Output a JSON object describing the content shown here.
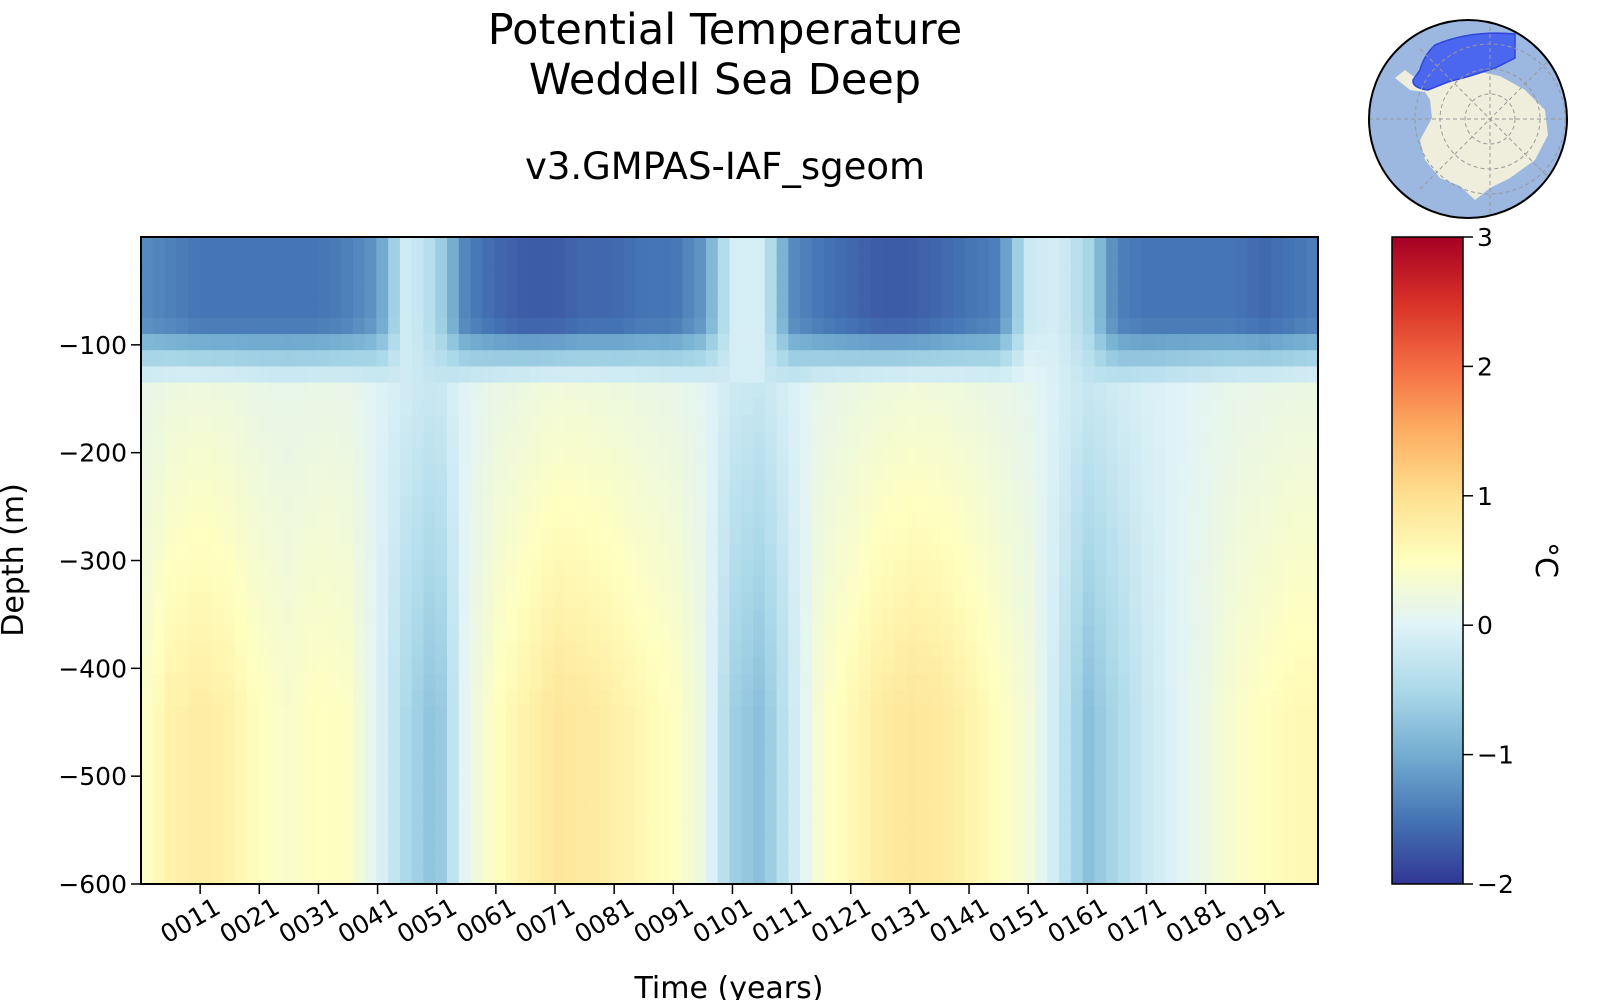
{
  "chart_data": {
    "type": "heatmap",
    "title": "Potential Temperature",
    "title_line2": "Weddell Sea Deep",
    "subtitle": "v3.GMPAS-IAF_sgeom",
    "xlabel": "Time (years)",
    "ylabel": "Depth (m)",
    "xlim": [
      1,
      200
    ],
    "ylim": [
      -600,
      0
    ],
    "x_ticks": [
      11,
      21,
      31,
      41,
      51,
      61,
      71,
      81,
      91,
      101,
      111,
      121,
      131,
      141,
      151,
      161,
      171,
      181,
      191
    ],
    "x_tick_labels": [
      "0011",
      "0021",
      "0031",
      "0041",
      "0051",
      "0061",
      "0071",
      "0081",
      "0091",
      "0101",
      "0111",
      "0121",
      "0131",
      "0141",
      "0151",
      "0161",
      "0171",
      "0181",
      "0191"
    ],
    "y_ticks": [
      -100,
      -200,
      -300,
      -400,
      -500,
      -600
    ],
    "y_tick_labels": [
      "−100",
      "−200",
      "−300",
      "−400",
      "−500",
      "−600"
    ],
    "colorbar": {
      "label": "°C",
      "range": [
        -2,
        3
      ],
      "ticks": [
        3,
        2,
        1,
        0,
        -1,
        -2
      ],
      "tick_labels": [
        "3",
        "2",
        "1",
        "0",
        "−1",
        "−2"
      ],
      "colormap": "RdYlBu_r"
    },
    "mean_deep_temperature_by_year": {
      "years": [
        1,
        6,
        11,
        16,
        21,
        26,
        31,
        36,
        41,
        46,
        51,
        56,
        61,
        66,
        71,
        76,
        81,
        86,
        91,
        96,
        101,
        106,
        111,
        116,
        121,
        126,
        131,
        136,
        141,
        146,
        151,
        156,
        161,
        166,
        171,
        176,
        181,
        186,
        191,
        196,
        200
      ],
      "values": [
        0.4,
        0.7,
        0.8,
        0.7,
        0.5,
        0.4,
        0.5,
        0.45,
        0.0,
        -0.5,
        -0.8,
        0.1,
        0.5,
        0.7,
        0.9,
        0.85,
        0.75,
        0.6,
        0.5,
        0.2,
        -0.6,
        -0.8,
        -0.2,
        0.4,
        0.6,
        0.8,
        0.9,
        0.85,
        0.7,
        0.5,
        0.3,
        -0.2,
        -0.8,
        -0.5,
        -0.2,
        0.0,
        0.2,
        0.4,
        0.5,
        0.6,
        0.6
      ]
    },
    "surface_temperature_by_year": {
      "years": [
        1,
        6,
        11,
        16,
        21,
        26,
        31,
        36,
        41,
        46,
        51,
        56,
        61,
        66,
        71,
        76,
        81,
        86,
        91,
        96,
        101,
        106,
        111,
        116,
        121,
        126,
        131,
        136,
        141,
        146,
        151,
        156,
        161,
        166,
        171,
        176,
        181,
        186,
        191,
        196,
        200
      ],
      "values": [
        -1.3,
        -1.4,
        -1.5,
        -1.5,
        -1.5,
        -1.5,
        -1.5,
        -1.4,
        -1.2,
        -0.1,
        -0.5,
        -1.4,
        -1.6,
        -1.7,
        -1.7,
        -1.6,
        -1.6,
        -1.5,
        -1.5,
        -1.2,
        -0.1,
        -0.1,
        -1.3,
        -1.5,
        -1.6,
        -1.7,
        -1.7,
        -1.6,
        -1.5,
        -1.4,
        -0.2,
        -0.1,
        -0.5,
        -1.4,
        -1.5,
        -1.5,
        -1.5,
        -1.5,
        -1.6,
        -1.5,
        -1.4
      ]
    },
    "mixed_layer_depth_m": 80
  }
}
